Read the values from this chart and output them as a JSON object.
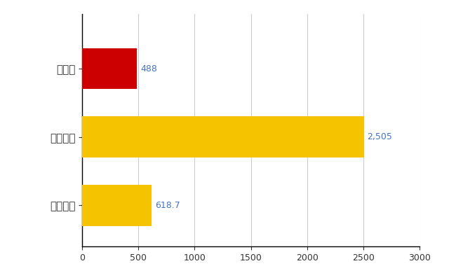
{
  "categories": [
    "全国平均",
    "全国最大",
    "三重県"
  ],
  "values": [
    618.7,
    2505,
    488
  ],
  "bar_colors": [
    "#F5C300",
    "#F5C300",
    "#CC0000"
  ],
  "bar_labels": [
    "618.7",
    "2,505",
    "488"
  ],
  "xlim": [
    0,
    3000
  ],
  "xticks": [
    0,
    500,
    1000,
    1500,
    2000,
    2500,
    3000
  ],
  "label_color": "#4472C4",
  "background_color": "#FFFFFF",
  "grid_color": "#CCCCCC"
}
